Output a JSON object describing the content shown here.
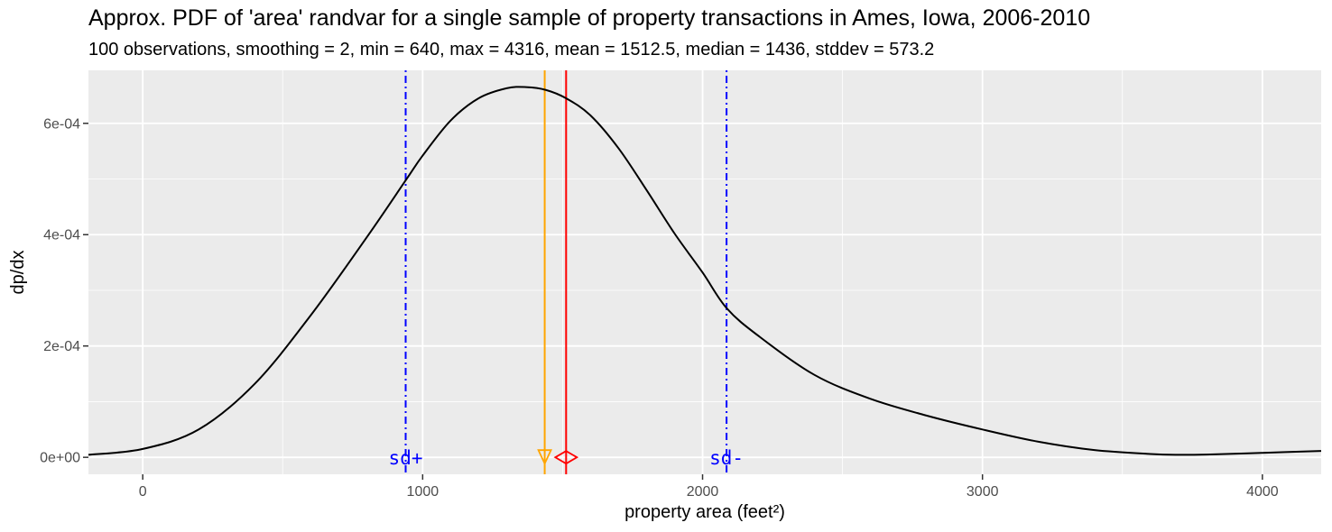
{
  "chart_data": {
    "type": "line",
    "title": "Approx. PDF of 'area' randvar for a single sample of property transactions in Ames, Iowa, 2006-2010",
    "subtitle": "100 observations, smoothing = 2, min = 640, max = 4316, mean = 1512.5, median = 1436, stddev = 573.2",
    "xlabel": "property area (feet²)",
    "ylabel": "dp/dx",
    "xlim": [
      -194,
      4210
    ],
    "ylim": [
      -3.05e-05,
      0.0006952
    ],
    "x_ticks": [
      0,
      1000,
      2000,
      3000,
      4000
    ],
    "x_tick_labels": [
      "0",
      "1000",
      "2000",
      "3000",
      "4000"
    ],
    "y_ticks": [
      0,
      0.0002,
      0.0004,
      0.0006
    ],
    "y_tick_labels": [
      "0e+00",
      "2e-04",
      "4e-04",
      "6e-04"
    ],
    "grid": true,
    "background": "#ebebeb",
    "series": [
      {
        "color": "#000000",
        "x": [
          -194,
          0,
          200,
          400,
          600,
          800,
          940,
          1000,
          1100,
          1200,
          1300,
          1370,
          1440,
          1512.5,
          1600,
          1700,
          1800,
          1900,
          2000,
          2086,
          2200,
          2400,
          2600,
          2800,
          3000,
          3200,
          3400,
          3600,
          3700,
          3800,
          4000,
          4210
        ],
        "y": [
          4.5e-06,
          1.5e-05,
          5e-05,
          0.000132,
          0.000255,
          0.000395,
          0.000498,
          0.000542,
          0.000605,
          0.000645,
          0.000663,
          0.000665,
          0.00066,
          0.000645,
          0.000614,
          0.000555,
          0.00048,
          0.000402,
          0.000332,
          0.000268,
          0.000218,
          0.000148,
          0.000105,
          7.5e-05,
          5e-05,
          2.8e-05,
          1.3e-05,
          6e-06,
          4.5e-06,
          5e-06,
          8e-06,
          1.15e-05
        ]
      }
    ],
    "vlines": [
      {
        "x": 939.3,
        "label": "sd+",
        "color": "#0000ff",
        "style": "dotdash"
      },
      {
        "x": 1436,
        "label": "",
        "color": "#ffa500",
        "style": "solid",
        "marker": "triangle-down"
      },
      {
        "x": 1512.5,
        "label": "",
        "color": "#ff0000",
        "style": "solid",
        "marker": "diamond"
      },
      {
        "x": 2085.7,
        "label": "sd-",
        "color": "#0000ff",
        "style": "dotdash"
      }
    ]
  }
}
